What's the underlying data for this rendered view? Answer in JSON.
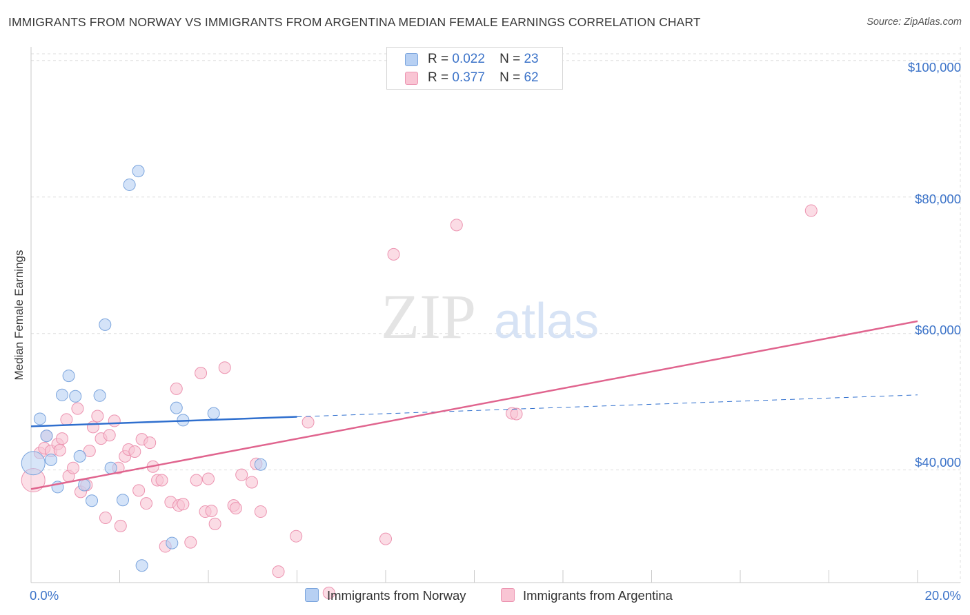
{
  "title": "IMMIGRANTS FROM NORWAY VS IMMIGRANTS FROM ARGENTINA MEDIAN FEMALE EARNINGS CORRELATION CHART",
  "source": "Source: ZipAtlas.com",
  "watermark": {
    "zip": "ZIP",
    "atlas": "atlas"
  },
  "legend": {
    "norway": {
      "r_label": "R =",
      "r_value": "0.022",
      "n_label": "N =",
      "n_value": "23"
    },
    "argentina": {
      "r_label": "R =",
      "r_value": "0.377",
      "n_label": "N =",
      "n_value": "62"
    }
  },
  "bottom_legend": {
    "norway": "Immigrants from Norway",
    "argentina": "Immigrants from Argentina"
  },
  "colors": {
    "norway_fill": "#b7d0f3",
    "norway_stroke": "#7aa4dd",
    "norway_line": "#2f6fce",
    "argentina_fill": "#f9c5d4",
    "argentina_stroke": "#ec93b0",
    "argentina_line": "#e0648e",
    "axis_text": "#3d74c9",
    "grid": "#dddddd"
  },
  "chart_data": {
    "type": "scatter",
    "title": "IMMIGRANTS FROM NORWAY VS IMMIGRANTS FROM ARGENTINA MEDIAN FEMALE EARNINGS CORRELATION CHART",
    "xlabel": "",
    "ylabel": "Median Female Earnings",
    "x_unit": "percent",
    "xlim": [
      0,
      20
    ],
    "ylim": [
      23500,
      102000
    ],
    "x_tick_labels": [
      "0.0%",
      "20.0%"
    ],
    "y_ticks": [
      40000,
      60000,
      80000,
      100000
    ],
    "y_tick_labels": [
      "$40,000",
      "$60,000",
      "$80,000",
      "$100,000"
    ],
    "grid": true,
    "legend_position": "top-center",
    "series": [
      {
        "name": "Immigrants from Norway",
        "R": 0.022,
        "N": 23,
        "trend": {
          "x": [
            0,
            6.0
          ],
          "y": [
            46400,
            47800
          ],
          "extended_to": [
            20,
            51000
          ]
        },
        "points": [
          {
            "x": 0.05,
            "y": 41000,
            "big": true
          },
          {
            "x": 0.2,
            "y": 47500
          },
          {
            "x": 0.35,
            "y": 45000
          },
          {
            "x": 0.45,
            "y": 41500
          },
          {
            "x": 0.6,
            "y": 37500
          },
          {
            "x": 0.7,
            "y": 51000
          },
          {
            "x": 0.85,
            "y": 53800
          },
          {
            "x": 1.0,
            "y": 50800
          },
          {
            "x": 1.1,
            "y": 42000
          },
          {
            "x": 1.2,
            "y": 37800
          },
          {
            "x": 1.37,
            "y": 35500
          },
          {
            "x": 1.55,
            "y": 50900
          },
          {
            "x": 1.67,
            "y": 61300
          },
          {
            "x": 1.8,
            "y": 40300
          },
          {
            "x": 2.07,
            "y": 35600
          },
          {
            "x": 2.22,
            "y": 81800
          },
          {
            "x": 2.42,
            "y": 83800
          },
          {
            "x": 2.5,
            "y": 26000
          },
          {
            "x": 3.18,
            "y": 29300
          },
          {
            "x": 3.28,
            "y": 49100
          },
          {
            "x": 3.43,
            "y": 47300
          },
          {
            "x": 4.12,
            "y": 48300
          },
          {
            "x": 5.18,
            "y": 40800
          }
        ]
      },
      {
        "name": "Immigrants from Argentina",
        "R": 0.377,
        "N": 62,
        "trend": {
          "x": [
            0,
            20
          ],
          "y": [
            37200,
            61800
          ]
        },
        "points": [
          {
            "x": 0.05,
            "y": 38500,
            "big": true
          },
          {
            "x": 0.2,
            "y": 42500
          },
          {
            "x": 0.3,
            "y": 43200
          },
          {
            "x": 0.35,
            "y": 45000
          },
          {
            "x": 0.45,
            "y": 42800
          },
          {
            "x": 0.6,
            "y": 43800
          },
          {
            "x": 0.65,
            "y": 42900
          },
          {
            "x": 0.7,
            "y": 44600
          },
          {
            "x": 0.8,
            "y": 47400
          },
          {
            "x": 0.85,
            "y": 39100
          },
          {
            "x": 0.95,
            "y": 40300
          },
          {
            "x": 1.05,
            "y": 49000
          },
          {
            "x": 1.12,
            "y": 36800
          },
          {
            "x": 1.25,
            "y": 37800
          },
          {
            "x": 1.32,
            "y": 42800
          },
          {
            "x": 1.4,
            "y": 46300
          },
          {
            "x": 1.5,
            "y": 47900
          },
          {
            "x": 1.58,
            "y": 44600
          },
          {
            "x": 1.68,
            "y": 33000
          },
          {
            "x": 1.77,
            "y": 45100
          },
          {
            "x": 1.88,
            "y": 47200
          },
          {
            "x": 1.97,
            "y": 40300
          },
          {
            "x": 2.02,
            "y": 31800
          },
          {
            "x": 2.12,
            "y": 42000
          },
          {
            "x": 2.2,
            "y": 43000
          },
          {
            "x": 2.34,
            "y": 42700
          },
          {
            "x": 2.43,
            "y": 37000
          },
          {
            "x": 2.5,
            "y": 44500
          },
          {
            "x": 2.6,
            "y": 35100
          },
          {
            "x": 2.68,
            "y": 44000
          },
          {
            "x": 2.75,
            "y": 40500
          },
          {
            "x": 2.85,
            "y": 38500
          },
          {
            "x": 2.95,
            "y": 38500
          },
          {
            "x": 3.03,
            "y": 28800
          },
          {
            "x": 3.15,
            "y": 35300
          },
          {
            "x": 3.28,
            "y": 51900
          },
          {
            "x": 3.33,
            "y": 34800
          },
          {
            "x": 3.43,
            "y": 35000
          },
          {
            "x": 3.6,
            "y": 29400
          },
          {
            "x": 3.73,
            "y": 38500
          },
          {
            "x": 3.83,
            "y": 54200
          },
          {
            "x": 3.93,
            "y": 33900
          },
          {
            "x": 4.0,
            "y": 38700
          },
          {
            "x": 4.07,
            "y": 34000
          },
          {
            "x": 4.15,
            "y": 32100
          },
          {
            "x": 4.37,
            "y": 55000
          },
          {
            "x": 4.57,
            "y": 34800
          },
          {
            "x": 4.62,
            "y": 34400
          },
          {
            "x": 4.75,
            "y": 39300
          },
          {
            "x": 4.98,
            "y": 38200
          },
          {
            "x": 5.08,
            "y": 40900
          },
          {
            "x": 5.18,
            "y": 33900
          },
          {
            "x": 5.58,
            "y": 25100
          },
          {
            "x": 5.98,
            "y": 30300
          },
          {
            "x": 6.25,
            "y": 47000
          },
          {
            "x": 6.72,
            "y": 22000
          },
          {
            "x": 8.0,
            "y": 29900
          },
          {
            "x": 8.18,
            "y": 71600
          },
          {
            "x": 9.6,
            "y": 75900
          },
          {
            "x": 10.85,
            "y": 48300
          },
          {
            "x": 10.95,
            "y": 48200
          },
          {
            "x": 17.6,
            "y": 78000
          }
        ]
      }
    ]
  }
}
